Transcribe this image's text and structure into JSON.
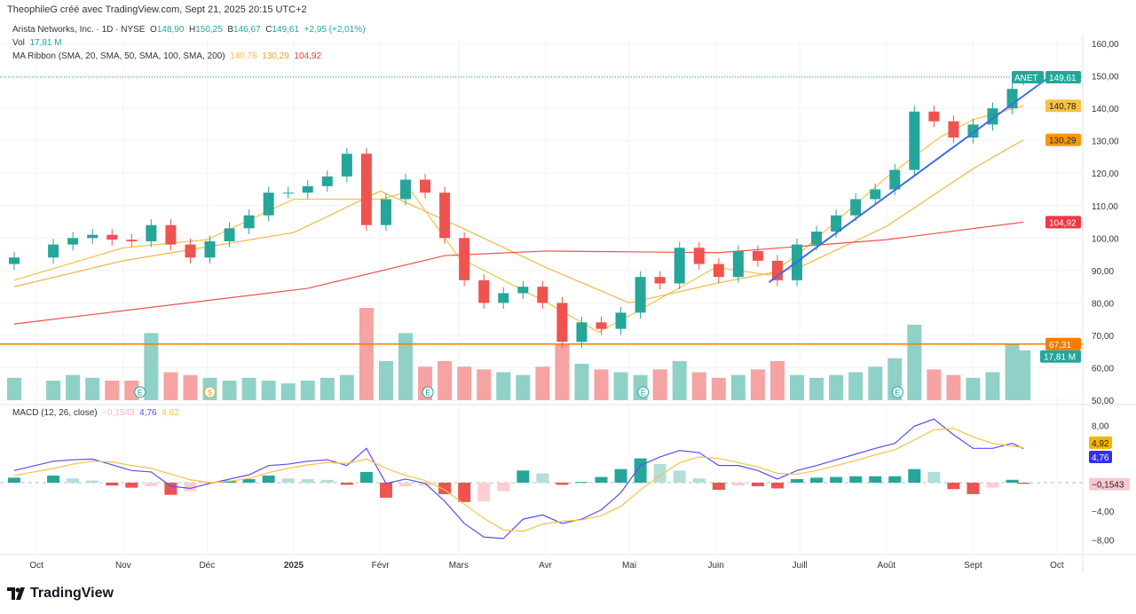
{
  "header": {
    "credit": "TheophileG créé avec TradingView.com, Sept 21, 2025 20:15 UTC+2"
  },
  "legend": {
    "symbol": "Arista Networks, Inc. · 1D · NYSE",
    "o_label": "O",
    "o": "148,90",
    "h_label": "H",
    "h": "150,25",
    "b_label": "B",
    "b": "146,67",
    "c_label": "C",
    "c": "149,61",
    "change": "+2,95 (+2,01%)",
    "vol_label": "Vol",
    "vol": "17,81 M",
    "ma_label": "MA Ribbon (SMA, 20, SMA, 50, SMA, 100, SMA, 200)",
    "ma20": "140,78",
    "ma50": "130,29",
    "ma200": "104,92"
  },
  "macd_legend": {
    "label": "MACD (12, 26, close)",
    "hist": "−0,1543",
    "macd": "4,76",
    "signal": "4,92"
  },
  "logo": "TradingView",
  "colors": {
    "up": "#26a69a",
    "down": "#ef5350",
    "vol_up": "#8fd1c6",
    "vol_down": "#f5a3a3",
    "ma20": "#f5c243",
    "ma50": "#f0b840",
    "ma200": "#f05050",
    "trend": "#3d6fe0",
    "hline": "#f57c00",
    "macd": "#5b4cf5",
    "signal": "#f5c243"
  },
  "chart_data": [
    {
      "type": "candlestick",
      "title": "Arista Networks, Inc. · 1D · NYSE",
      "ylim": [
        50,
        160
      ],
      "yticks": [
        "160,00",
        "150,00",
        "140,00",
        "130,00",
        "120,00",
        "110,00",
        "100,00",
        "90,00",
        "80,00",
        "70,00",
        "60,00",
        "50,00"
      ],
      "xticks": [
        {
          "date": "2024-10-01",
          "label": "Oct"
        },
        {
          "date": "2024-11-01",
          "label": "Nov"
        },
        {
          "date": "2024-12-01",
          "label": "Déc"
        },
        {
          "date": "2025-01-01",
          "label": "2025"
        },
        {
          "date": "2025-02-01",
          "label": "Févr"
        },
        {
          "date": "2025-03-01",
          "label": "Mars"
        },
        {
          "date": "2025-04-01",
          "label": "Avr"
        },
        {
          "date": "2025-05-01",
          "label": "Mai"
        },
        {
          "date": "2025-06-01",
          "label": "Juin"
        },
        {
          "date": "2025-07-01",
          "label": "Juill"
        },
        {
          "date": "2025-08-01",
          "label": "Août"
        },
        {
          "date": "2025-09-01",
          "label": "Sept"
        },
        {
          "date": "2025-10-01",
          "label": "Oct"
        }
      ],
      "dates": [
        "2024-09-23",
        "2024-10-07",
        "2024-10-14",
        "2024-10-21",
        "2024-10-28",
        "2024-11-04",
        "2024-11-11",
        "2024-11-18",
        "2024-11-25",
        "2024-12-02",
        "2024-12-09",
        "2024-12-16",
        "2024-12-23",
        "2024-12-30",
        "2025-01-06",
        "2025-01-13",
        "2025-01-20",
        "2025-01-27",
        "2025-02-03",
        "2025-02-10",
        "2025-02-17",
        "2025-02-24",
        "2025-03-03",
        "2025-03-10",
        "2025-03-17",
        "2025-03-24",
        "2025-03-31",
        "2025-04-07",
        "2025-04-14",
        "2025-04-21",
        "2025-04-28",
        "2025-05-05",
        "2025-05-12",
        "2025-05-19",
        "2025-05-26",
        "2025-06-02",
        "2025-06-09",
        "2025-06-16",
        "2025-06-23",
        "2025-06-30",
        "2025-07-07",
        "2025-07-14",
        "2025-07-21",
        "2025-07-28",
        "2025-08-04",
        "2025-08-11",
        "2025-08-18",
        "2025-08-25",
        "2025-09-01",
        "2025-09-08",
        "2025-09-15",
        "2025-09-19"
      ],
      "open": [
        92,
        94,
        98,
        100,
        101,
        99.5,
        99,
        104,
        98,
        94,
        99,
        103,
        107,
        114,
        114,
        116,
        119,
        126,
        104,
        112,
        118,
        114,
        100,
        87,
        80,
        83,
        85,
        80,
        68,
        74,
        72,
        77,
        88,
        86,
        97,
        92,
        88,
        96,
        93,
        87,
        98,
        102,
        107,
        112,
        115,
        121,
        139,
        136,
        131,
        135,
        140,
        148.9
      ],
      "close": [
        94,
        98,
        100,
        101,
        99.5,
        99,
        104,
        98,
        94,
        99,
        103,
        107,
        114,
        114,
        116,
        119,
        126,
        104,
        112,
        118,
        114,
        100,
        87,
        80,
        83,
        85,
        80,
        68,
        74,
        72,
        77,
        88,
        86,
        97,
        92,
        88,
        96,
        93,
        87,
        98,
        102,
        107,
        112,
        115,
        121,
        139,
        136,
        131,
        135,
        140,
        146,
        149.61
      ],
      "volume_m": [
        8,
        7,
        9,
        8,
        7,
        7,
        24,
        10,
        9,
        8,
        7,
        8,
        7,
        6,
        7,
        8,
        9,
        33,
        14,
        24,
        12,
        14,
        12,
        11,
        10,
        9,
        12,
        20,
        13,
        11,
        10,
        9,
        11,
        14,
        10,
        8,
        9,
        11,
        14,
        9,
        8,
        9,
        10,
        12,
        15,
        27,
        11,
        9,
        8,
        10,
        20,
        17.81
      ],
      "ma": [
        {
          "name": "SMA 20",
          "color": "#f5c243",
          "points": [
            [
              "2024-09-23",
              87
            ],
            [
              "2024-11-01",
              97
            ],
            [
              "2024-12-01",
              99.5
            ],
            [
              "2025-01-01",
              112
            ],
            [
              "2025-02-01",
              112
            ],
            [
              "2025-02-12",
              114.5
            ],
            [
              "2025-03-01",
              94
            ],
            [
              "2025-04-01",
              80.4
            ],
            [
              "2025-04-20",
              71
            ],
            [
              "2025-05-01",
              76
            ],
            [
              "2025-06-01",
              91
            ],
            [
              "2025-06-20",
              88.6
            ],
            [
              "2025-07-01",
              95.4
            ],
            [
              "2025-08-01",
              118.7
            ],
            [
              "2025-08-20",
              131
            ],
            [
              "2025-09-01",
              136.5
            ],
            [
              "2025-09-19",
              140.78
            ]
          ]
        },
        {
          "name": "SMA 50",
          "color": "#f0b840",
          "points": [
            [
              "2024-09-23",
              85
            ],
            [
              "2024-11-01",
              93
            ],
            [
              "2025-01-01",
              101.7
            ],
            [
              "2025-02-01",
              114.5
            ],
            [
              "2025-03-01",
              103.6
            ],
            [
              "2025-04-01",
              91
            ],
            [
              "2025-05-01",
              80
            ],
            [
              "2025-06-01",
              86
            ],
            [
              "2025-07-01",
              91
            ],
            [
              "2025-08-01",
              103.6
            ],
            [
              "2025-09-01",
              121.4
            ],
            [
              "2025-09-19",
              130.29
            ]
          ]
        },
        {
          "name": "SMA 200",
          "color": "#f05050",
          "points": [
            [
              "2024-09-23",
              73.5
            ],
            [
              "2025-01-06",
              84.5
            ],
            [
              "2025-02-24",
              94.6
            ],
            [
              "2025-04-01",
              96
            ],
            [
              "2025-06-02",
              95.5
            ],
            [
              "2025-08-01",
              99.5
            ],
            [
              "2025-09-19",
              104.92
            ]
          ]
        }
      ],
      "trendline": [
        [
          "2025-06-20",
          86.4
        ],
        [
          "2025-09-28",
          149.5
        ]
      ],
      "hline": 67.31,
      "events": [
        {
          "date": "2024-11-07",
          "label": "E"
        },
        {
          "date": "2024-12-02",
          "label": "$"
        },
        {
          "date": "2025-02-18",
          "label": "E"
        },
        {
          "date": "2025-05-06",
          "label": "E"
        },
        {
          "date": "2025-08-05",
          "label": "E"
        }
      ],
      "tags": [
        {
          "label": "ANET",
          "value": "149,61",
          "price": 149.61,
          "color": "#26a69a"
        },
        {
          "value": "140,78",
          "price": 140.78,
          "color": "#f5c243"
        },
        {
          "value": "130,29",
          "price": 130.29,
          "color": "#ff9800"
        },
        {
          "value": "104,92",
          "price": 104.92,
          "color": "#f23645"
        },
        {
          "value": "67,31",
          "price": 67.31,
          "color": "#f57c00"
        },
        {
          "value": "17,81 M",
          "price": 63.5,
          "color": "#26a69a"
        }
      ]
    },
    {
      "type": "macd",
      "title": "MACD (12, 26, close)",
      "ylim": [
        -10,
        10
      ],
      "yticks": [
        {
          "v": 8,
          "label": "8,00"
        },
        {
          "v": -4,
          "label": "−4,00"
        },
        {
          "v": -8,
          "label": "−8,00"
        }
      ],
      "macd": [
        1.7,
        3,
        3.2,
        3.3,
        2.5,
        1.7,
        1.5,
        -0.5,
        -0.8,
        -0.1,
        0.5,
        1.1,
        2.4,
        2.6,
        3,
        3.2,
        2.4,
        4.8,
        -0.1,
        0.5,
        -0.1,
        -2.6,
        -5.7,
        -7.6,
        -7.8,
        -5.1,
        -4.5,
        -5.7,
        -5.1,
        -3.8,
        -1.4,
        2.4,
        3.6,
        4.5,
        4.2,
        2.4,
        2.4,
        1.7,
        0.5,
        1.7,
        2.4,
        3.2,
        4,
        4.8,
        5.5,
        7.9,
        8.9,
        6.7,
        4.8,
        4.8,
        5.5,
        4.76
      ],
      "signal": [
        1,
        2,
        2.6,
        3,
        2.9,
        2.4,
        2,
        1.2,
        0.4,
        0,
        0.2,
        0.6,
        1.4,
        2,
        2.5,
        2.8,
        2.7,
        3.3,
        2,
        1,
        0.3,
        -1,
        -3,
        -5,
        -6.6,
        -6.8,
        -5.8,
        -5.4,
        -5.2,
        -4.6,
        -3.3,
        -1,
        1,
        2.8,
        3.6,
        3.4,
        2.8,
        2.2,
        1.3,
        1.2,
        1.7,
        2.4,
        3.1,
        3.9,
        4.6,
        6,
        7.4,
        7.6,
        6.4,
        5.5,
        5.1,
        4.92
      ],
      "tags": [
        {
          "value": "4,92",
          "v": 5.6,
          "color": "#f7b500"
        },
        {
          "value": "4,76",
          "v": 3.6,
          "color": "#3030f0"
        },
        {
          "value": "−0,1543",
          "v": -0.2,
          "color": "#f8c8ce"
        }
      ]
    }
  ]
}
